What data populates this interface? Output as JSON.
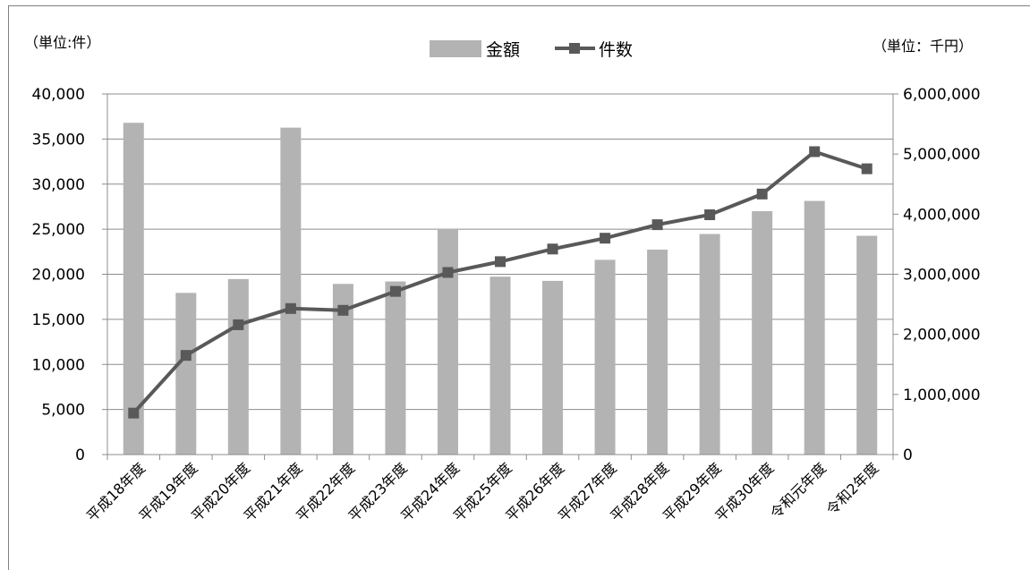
{
  "chart_data": {
    "type": "bar+line",
    "categories": [
      "平成18年度",
      "平成19年度",
      "平成20年度",
      "平成21年度",
      "平成22年度",
      "平成23年度",
      "平成24年度",
      "平成25年度",
      "平成26年度",
      "平成27年度",
      "平成28年度",
      "平成29年度",
      "平成30年度",
      "令和元年度",
      "令和2年度"
    ],
    "series": [
      {
        "name": "金額",
        "type": "bar",
        "axis": "right",
        "color": "#b3b3b3",
        "values": [
          5520000,
          2690000,
          2920000,
          5440000,
          2840000,
          2880000,
          3760000,
          2960000,
          2890000,
          3240000,
          3410000,
          3670000,
          4050000,
          4220000,
          3640000
        ]
      },
      {
        "name": "件数",
        "type": "line",
        "axis": "left",
        "color": "#595959",
        "values": [
          4600,
          11000,
          14400,
          16200,
          16000,
          18100,
          20200,
          21400,
          22800,
          24000,
          25500,
          26600,
          28900,
          33600,
          31700
        ]
      }
    ],
    "left_axis": {
      "unit": "（単位:件）",
      "range": [
        0,
        40000
      ],
      "ticks": [
        "0",
        "5,000",
        "10,000",
        "15,000",
        "20,000",
        "25,000",
        "30,000",
        "35,000",
        "40,000"
      ]
    },
    "right_axis": {
      "unit": "（単位：千円）",
      "range": [
        0,
        6000000
      ],
      "ticks": [
        "0",
        "1,000,000",
        "2,000,000",
        "3,000,000",
        "4,000,000",
        "5,000,000",
        "6,000,000"
      ]
    },
    "legend": {
      "placement": "top-center",
      "bar_label": "金額",
      "line_label": "件数"
    },
    "grid": true
  }
}
